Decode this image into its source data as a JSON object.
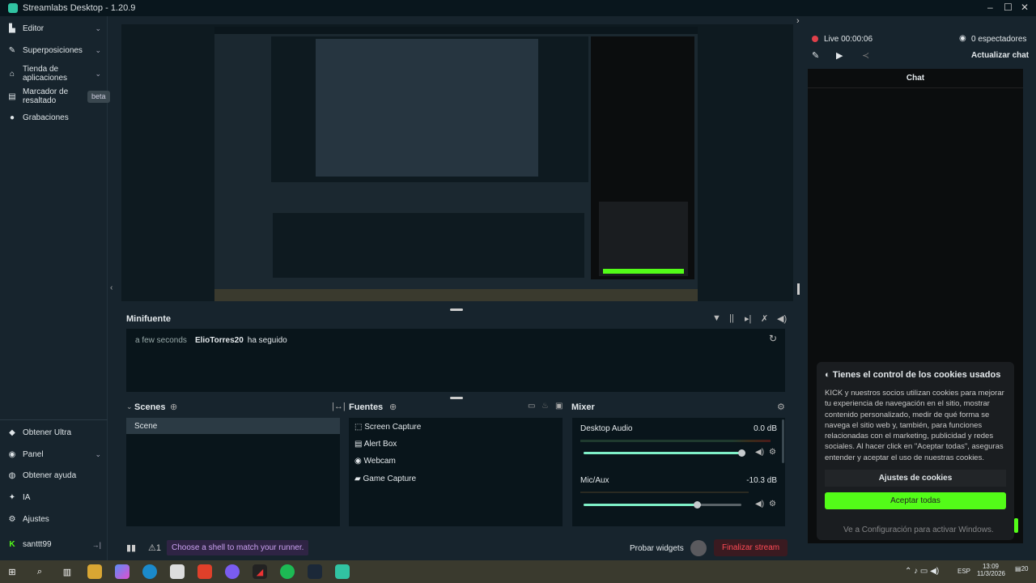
{
  "window": {
    "title": "Streamlabs Desktop - 1.20.9"
  },
  "sidebar": {
    "items": [
      {
        "label": "Editor",
        "icon": "editor-icon"
      },
      {
        "label": "Superposiciones",
        "icon": "overlays-icon"
      },
      {
        "label": "Tienda de aplicaciones",
        "icon": "store-icon"
      },
      {
        "label": "Marcador de resaltado",
        "icon": "highlighter-icon",
        "badge": "beta"
      },
      {
        "label": "Grabaciones",
        "icon": "play-icon"
      }
    ],
    "bottom_items": [
      {
        "label": "Obtener Ultra",
        "icon": "ultra-icon"
      },
      {
        "label": "Panel",
        "icon": "dashboard-icon"
      },
      {
        "label": "Obtener ayuda",
        "icon": "help-icon"
      },
      {
        "label": "IA",
        "icon": "ai-icon"
      },
      {
        "label": "Ajustes",
        "icon": "gear-icon"
      }
    ],
    "user": "santtt99"
  },
  "minifeed": {
    "title": "Minifuente",
    "events": [
      {
        "time": "a few seconds",
        "user": "ElioTorres20",
        "action": "ha seguido"
      }
    ]
  },
  "scenes": {
    "title": "Scenes",
    "items": [
      "Scene"
    ]
  },
  "sources": {
    "title": "Fuentes",
    "items": [
      "Screen Capture",
      "Alert Box",
      "Webcam",
      "Game Capture"
    ]
  },
  "mixer": {
    "title": "Mixer",
    "channels": [
      {
        "name": "Desktop Audio",
        "db": "0.0 dB",
        "level": 1.0
      },
      {
        "name": "Mic/Aux",
        "db": "-10.3 dB",
        "level": 0.72
      }
    ]
  },
  "bottombar": {
    "tip": "Choose a shell to match your runner.",
    "alerts": "1",
    "test_widgets": "Probar widgets",
    "end_stream": "Finalizar stream"
  },
  "live": {
    "status": "Live 00:00:06",
    "viewers": "0 espectadores",
    "refresh_chat": "Actualizar chat",
    "chat_title": "Chat"
  },
  "cookie": {
    "title": "Tienes el control de los cookies usados",
    "body": "KICK y nuestros socios utilizan cookies para mejorar tu experiencia de navegación en el sitio, mostrar contenido personalizado, medir de qué forma se navega el sitio web y, también, para funciones relacionadas con el marketing, publicidad y redes sociales. Al hacer click en \"Aceptar todas\", aseguras entender y aceptar el uso de nuestras cookies.",
    "settings": "Ajustes de cookies",
    "accept": "Aceptar todas"
  },
  "watermark": "Ve a Configuración para activar Windows.",
  "taskbar": {
    "lang": "ESP",
    "time": "13:09",
    "date": "11/3/2026",
    "notifications": "20"
  },
  "colors": {
    "accent": "#31c3a2",
    "end_stream": "#e0303e",
    "accept": "#53fc18"
  }
}
